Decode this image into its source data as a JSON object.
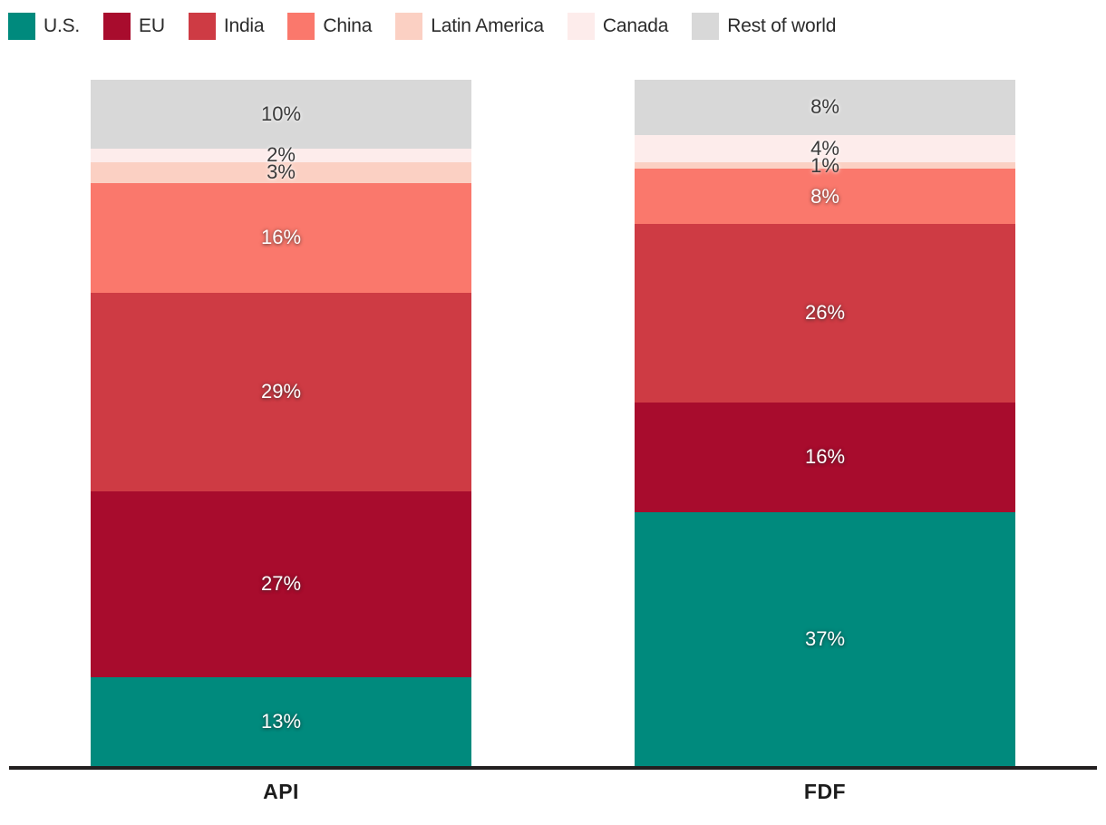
{
  "chart_data": {
    "type": "bar",
    "stacked": true,
    "orientation": "vertical",
    "unit": "%",
    "categories": [
      "API",
      "FDF"
    ],
    "series": [
      {
        "name": "U.S.",
        "color": "#008a7d",
        "text_style": "light",
        "values": [
          13,
          37
        ]
      },
      {
        "name": "EU",
        "color": "#a80c2d",
        "text_style": "light",
        "values": [
          27,
          16
        ]
      },
      {
        "name": "India",
        "color": "#ce3b44",
        "text_style": "light",
        "values": [
          29,
          26
        ]
      },
      {
        "name": "China",
        "color": "#fa786c",
        "text_style": "light",
        "values": [
          16,
          8
        ]
      },
      {
        "name": "Latin America",
        "color": "#fbd0c3",
        "text_style": "dark",
        "values": [
          3,
          1
        ]
      },
      {
        "name": "Canada",
        "color": "#fdeceb",
        "text_style": "dark",
        "values": [
          2,
          4
        ]
      },
      {
        "name": "Rest of world",
        "color": "#d8d8d8",
        "text_style": "dark",
        "values": [
          10,
          8
        ]
      }
    ],
    "stack_order_top_to_bottom": [
      "Rest of world",
      "Canada",
      "Latin America",
      "China",
      "India",
      "EU",
      "U.S."
    ],
    "segment_label_format": "{value}%",
    "ylim": [
      0,
      100
    ],
    "grid": false,
    "legend_position": "top-left",
    "axis_line_color": "#231f20",
    "background_color": "#ffffff"
  }
}
